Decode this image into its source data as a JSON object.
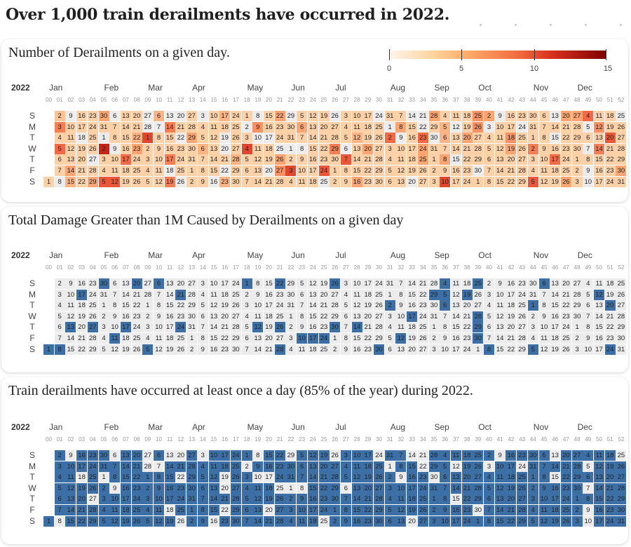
{
  "headline": "Over 1,000 train derailments have occurred in 2022.",
  "year": "2022",
  "week_labels": [
    "00",
    "01",
    "02",
    "03",
    "04",
    "05",
    "06",
    "07",
    "08",
    "09",
    "10",
    "11",
    "12",
    "13",
    "14",
    "15",
    "16",
    "17",
    "18",
    "19",
    "20",
    "21",
    "22",
    "23",
    "24",
    "25",
    "26",
    "27",
    "28",
    "29",
    "30",
    "31",
    "32",
    "33",
    "34",
    "35",
    "36",
    "37",
    "38",
    "39",
    "40",
    "41",
    "42",
    "43",
    "44",
    "45",
    "46",
    "47",
    "48",
    "49",
    "50",
    "51",
    "52"
  ],
  "day_labels": [
    "S",
    "M",
    "T",
    "W",
    "T",
    "F",
    "S"
  ],
  "month_labels": [
    "Jan",
    "Feb",
    "Mar",
    "Apr",
    "May",
    "Jun",
    "Jul",
    "Aug",
    "Sep",
    "Oct",
    "Nov",
    "Dec"
  ],
  "colors": {
    "no_data": "#ececec",
    "highlight": "#3b6fa6",
    "card_bg": "#ffffff"
  },
  "panels": [
    {
      "title": "Number of Derailments on a given day.",
      "legend": {
        "min": 0,
        "max": 15,
        "ticks": [
          "0",
          "5",
          "10",
          "15"
        ]
      }
    },
    {
      "title": "Total Damage Greater than 1M Caused by Derailments on a given day"
    },
    {
      "title": "Train derailments have occurred at least once a day (85% of the year) during 2022."
    }
  ],
  "chart_data": [
    {
      "type": "heatmap",
      "title": "Number of Derailments on a given day.",
      "calendar_year": 2022,
      "color_scale": {
        "min": 0,
        "max": 15,
        "scheme": "orange-red"
      },
      "zero_days": [
        "01-08",
        "01-09",
        "01-18",
        "01-27",
        "02-01",
        "02-06",
        "02-09",
        "02-27",
        "02-28",
        "03-07",
        "03-13",
        "03-18",
        "03-20",
        "03-22",
        "03-26",
        "04-03",
        "04-16",
        "04-19",
        "04-20",
        "04-22",
        "05-02",
        "05-08",
        "05-10",
        "05-17",
        "05-20",
        "05-25",
        "05-29",
        "06-01",
        "06-08",
        "06-25",
        "06-26",
        "07-06",
        "07-24",
        "08-01",
        "08-09",
        "08-14",
        "08-20",
        "08-21",
        "08-22",
        "08-30",
        "09-12",
        "09-15",
        "09-30",
        "10-03",
        "10-09",
        "10-24",
        "11-13",
        "11-15",
        "12-05",
        "12-07",
        "12-09",
        "12-10",
        "12-25"
      ],
      "high_days": {
        "01-02": 3,
        "01-03": 7,
        "01-05": 8,
        "01-14": 5,
        "01-15": 4,
        "01-29": 5,
        "01-30": 5,
        "02-02": 12,
        "02-05": 9,
        "02-12": 9,
        "02-17": 8,
        "02-23": 5,
        "02-22": 4,
        "03-01": 10,
        "03-14": 7,
        "03-17": 7,
        "03-19": 7,
        "03-29": 5,
        "03-06": 4,
        "04-06": 4,
        "04-17": 4,
        "04-23": 4,
        "04-28": 4,
        "05-04": 10,
        "05-09": 6,
        "05-22": 5,
        "05-26": 5,
        "05-27": 6,
        "06-03": 10,
        "06-06": 5,
        "06-24": 9,
        "06-29": 7,
        "07-07": 9,
        "07-12": 4,
        "07-16": 5,
        "07-20": 5,
        "08-02": 8,
        "08-08": 5,
        "08-23": 8,
        "08-24": 5,
        "08-25": 5,
        "08-28": 5,
        "09-05": 4,
        "09-06": 4,
        "09-08": 5,
        "09-10": 10,
        "09-25": 6,
        "09-26": 6,
        "09-20": 5,
        "10-02": 5,
        "10-18": 6,
        "10-19": 5,
        "11-02": 7,
        "11-05": 9,
        "11-17": 8,
        "11-20": 5,
        "11-27": 5,
        "11-26": 5,
        "12-04": 8,
        "12-12": 6,
        "12-14": 7,
        "12-20": 9,
        "12-30": 5,
        "12-25": 0
      },
      "default_value": 2
    },
    {
      "type": "heatmap",
      "title": "Total Damage Greater than 1M Caused by Derailments on a given day",
      "calendar_year": 2022,
      "highlighted_days": [
        "01-01",
        "01-08",
        "01-13",
        "01-17",
        "01-27",
        "01-30",
        "02-11",
        "02-17",
        "02-20",
        "03-05",
        "03-06",
        "03-21",
        "03-24",
        "05-01",
        "05-12",
        "05-22",
        "05-26",
        "05-28",
        "06-10",
        "06-17",
        "06-24",
        "06-26",
        "06-30",
        "07-14",
        "07-30",
        "08-02",
        "08-12",
        "08-17",
        "08-29",
        "09-04",
        "09-05",
        "09-06",
        "09-19",
        "09-25",
        "09-28",
        "09-29",
        "09-30",
        "10-08",
        "11-01",
        "11-05",
        "11-06",
        "12-12",
        "12-20",
        "12-24"
      ]
    },
    {
      "type": "heatmap",
      "title": "Train derailments have occurred at least once a day (85% of the year) during 2022.",
      "calendar_year": 2022,
      "percent_days_with_derailment": 85,
      "non_highlighted_days": [
        "01-08",
        "01-09",
        "01-18",
        "01-27",
        "02-01",
        "02-06",
        "02-09",
        "02-27",
        "02-28",
        "03-07",
        "03-13",
        "03-18",
        "03-20",
        "03-22",
        "03-26",
        "04-03",
        "04-16",
        "04-19",
        "04-20",
        "04-22",
        "05-02",
        "05-08",
        "05-10",
        "05-17",
        "05-20",
        "05-25",
        "05-29",
        "06-01",
        "06-08",
        "06-25",
        "06-26",
        "07-06",
        "07-24",
        "08-01",
        "08-09",
        "08-14",
        "08-20",
        "08-21",
        "08-22",
        "08-30",
        "09-12",
        "09-15",
        "09-30",
        "10-03",
        "10-09",
        "10-24",
        "11-13",
        "11-15",
        "12-05",
        "12-07",
        "12-09",
        "12-10",
        "12-25"
      ]
    }
  ]
}
